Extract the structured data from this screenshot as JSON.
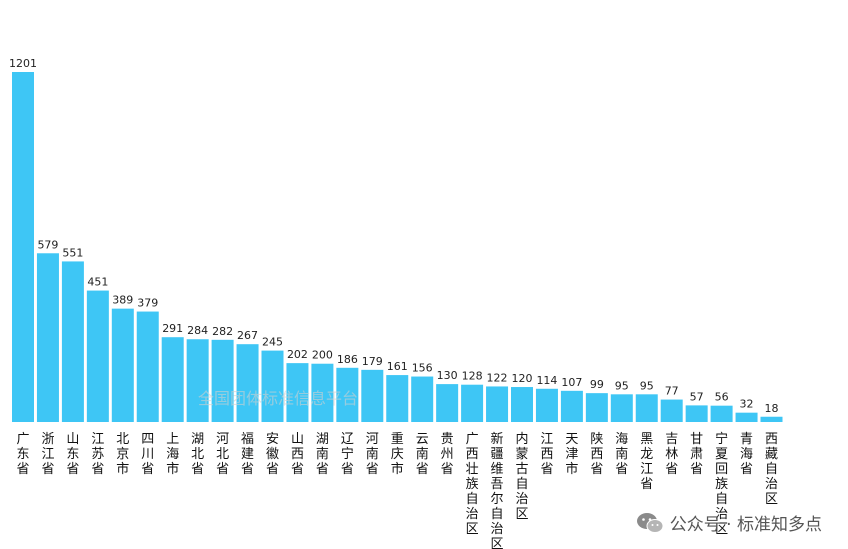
{
  "chart_data": {
    "type": "bar",
    "categories": [
      "广东省",
      "浙江省",
      "山东省",
      "江苏省",
      "北京市",
      "四川省",
      "上海市",
      "湖北省",
      "河北省",
      "福建省",
      "安徽省",
      "山西省",
      "湖南省",
      "辽宁省",
      "河南省",
      "重庆市",
      "云南省",
      "贵州省",
      "广西壮族自治区",
      "新疆维吾尔自治区",
      "内蒙古自治区",
      "江西省",
      "天津市",
      "陕西省",
      "海南省",
      "黑龙江省",
      "吉林省",
      "甘肃省",
      "宁夏回族自治区",
      "青海省",
      "西藏自治区"
    ],
    "values": [
      1201,
      579,
      551,
      451,
      389,
      379,
      291,
      284,
      282,
      267,
      245,
      202,
      200,
      186,
      179,
      161,
      156,
      130,
      128,
      122,
      120,
      114,
      107,
      99,
      95,
      95,
      77,
      57,
      56,
      32,
      18
    ],
    "value_labels": [
      "1201",
      "579",
      "551",
      "451",
      "389",
      "379",
      "291",
      "284",
      "282",
      "267",
      "245",
      "202",
      "200",
      "186",
      "179",
      "161",
      "156",
      "130",
      "128",
      "122",
      "120",
      "114",
      "107",
      "99",
      "95",
      "95",
      "77",
      "57",
      "56",
      "32",
      "18"
    ],
    "ylim": [
      0,
      1201
    ],
    "bar_color": "#3ec6f5",
    "grid": false,
    "title": "",
    "xlabel": "",
    "ylabel": ""
  },
  "watermark": "全国团体标准信息平台",
  "footer": {
    "icon": "wechat-icon",
    "text": "公众号 · 标准知多点"
  }
}
